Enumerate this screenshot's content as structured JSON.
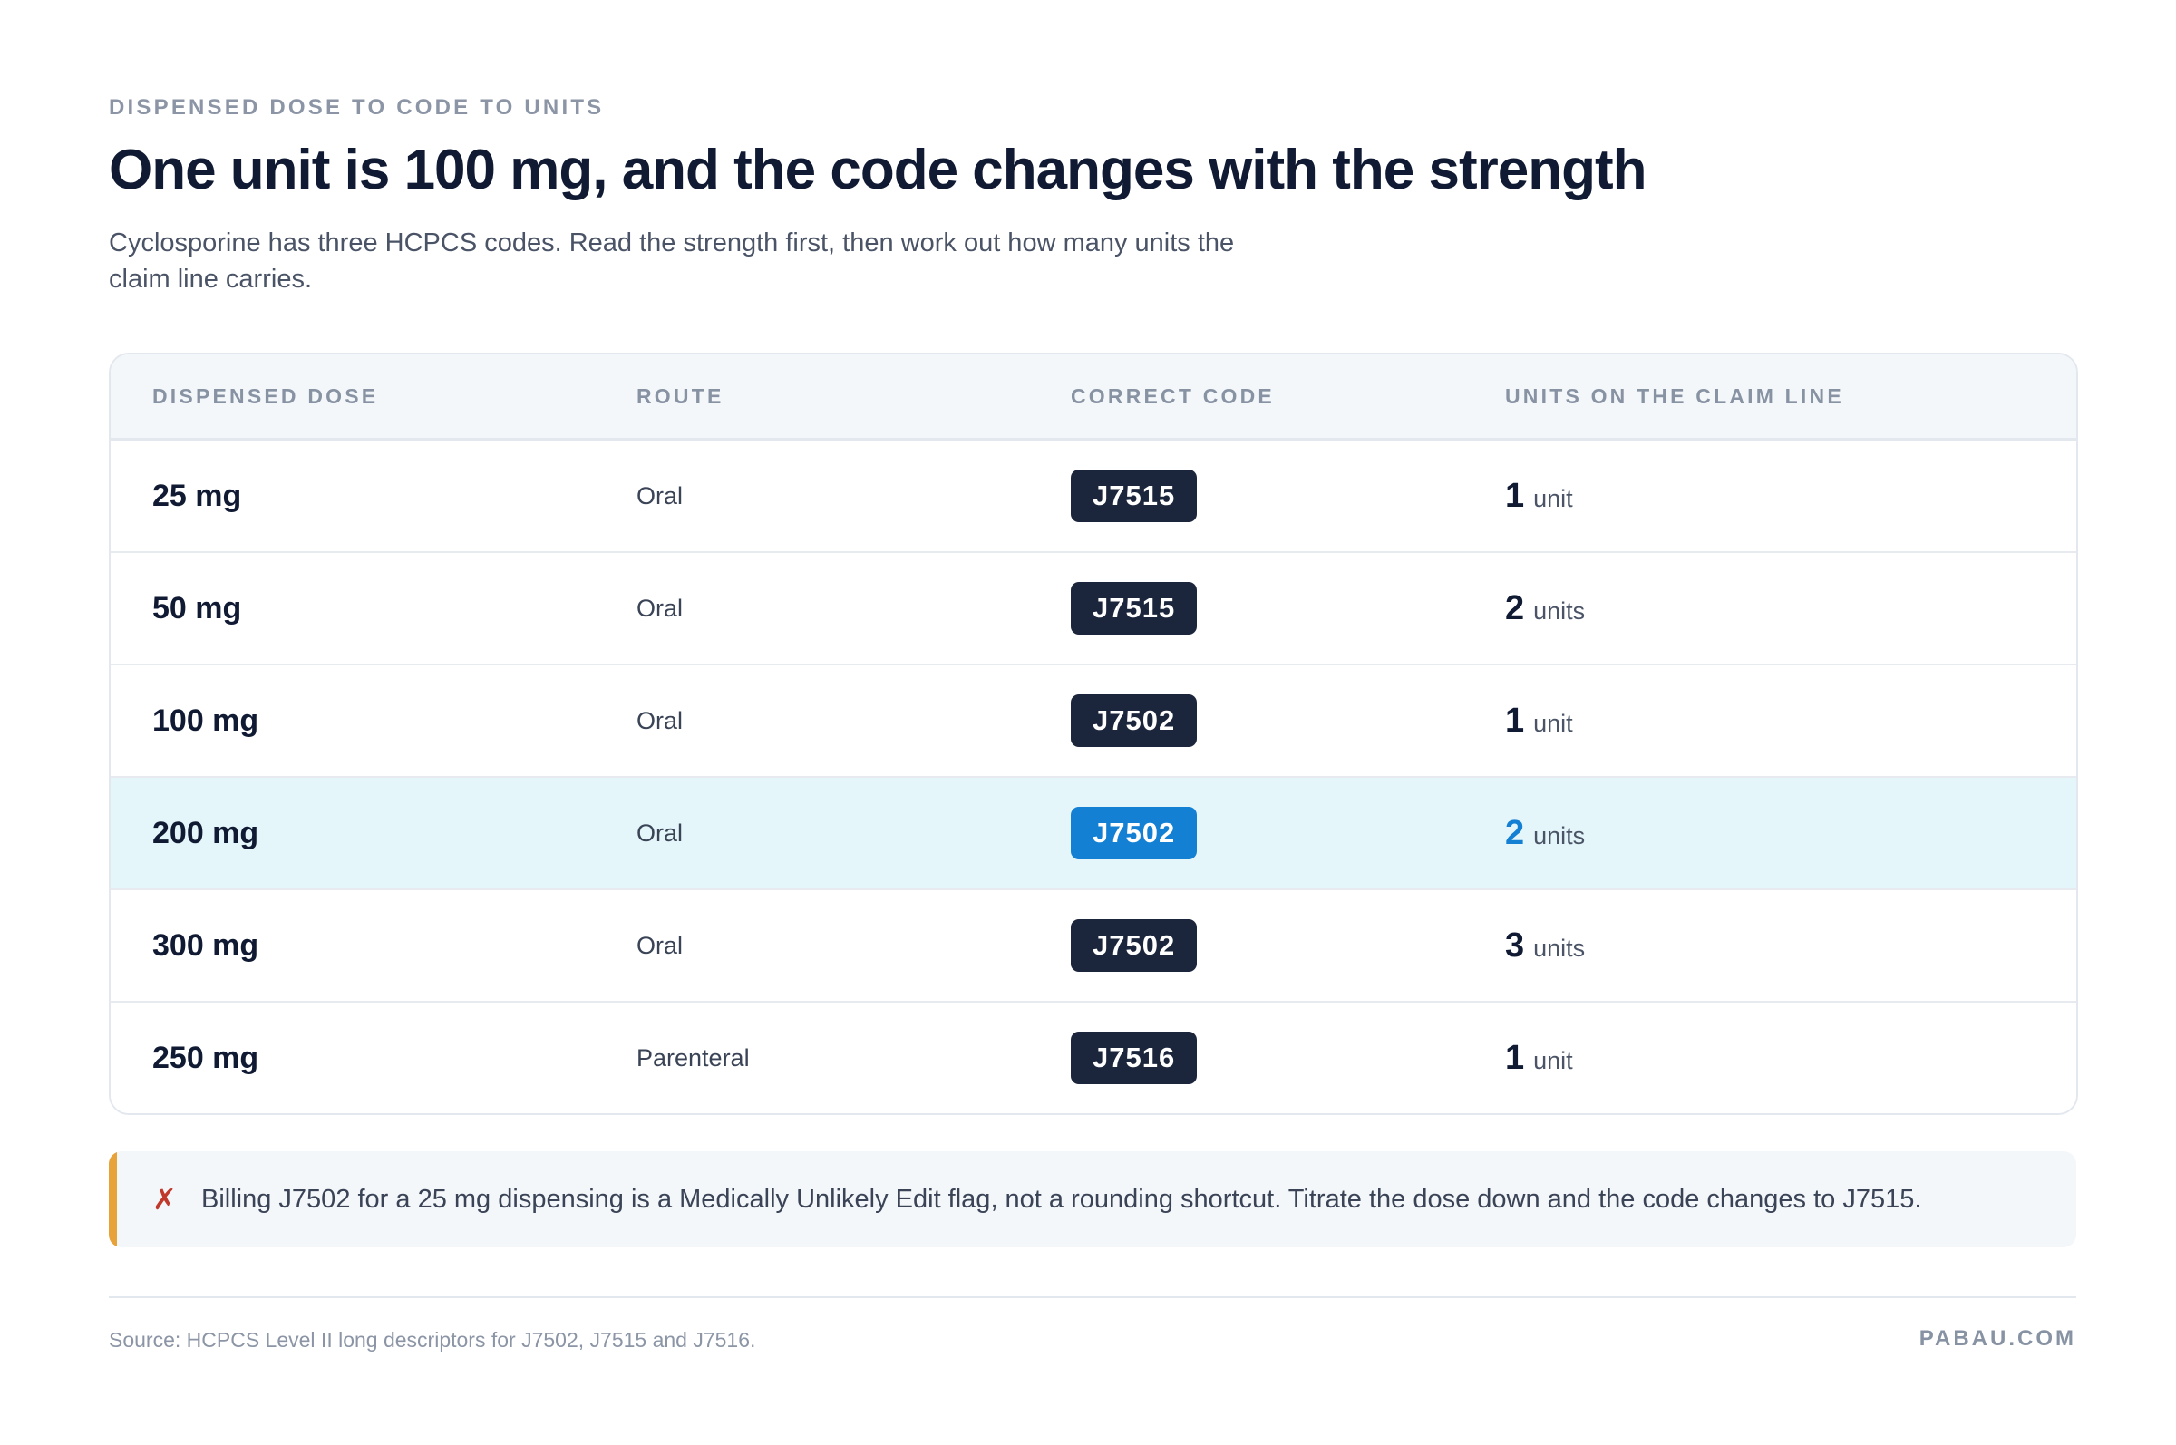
{
  "header": {
    "eyebrow": "DISPENSED DOSE TO CODE TO UNITS",
    "title": "One unit is 100 mg, and the code changes with the strength",
    "subtitle": "Cyclosporine has three HCPCS codes. Read the strength first, then work out how many units the claim line carries."
  },
  "table": {
    "columns": [
      "DISPENSED DOSE",
      "ROUTE",
      "CORRECT CODE",
      "UNITS ON THE CLAIM LINE"
    ],
    "rows": [
      {
        "dose": "25 mg",
        "route": "Oral",
        "code": "J7515",
        "units": "1",
        "unit_word": "unit",
        "highlighted": false
      },
      {
        "dose": "50 mg",
        "route": "Oral",
        "code": "J7515",
        "units": "2",
        "unit_word": "units",
        "highlighted": false
      },
      {
        "dose": "100 mg",
        "route": "Oral",
        "code": "J7502",
        "units": "1",
        "unit_word": "unit",
        "highlighted": false
      },
      {
        "dose": "200 mg",
        "route": "Oral",
        "code": "J7502",
        "units": "2",
        "unit_word": "units",
        "highlighted": true
      },
      {
        "dose": "300 mg",
        "route": "Oral",
        "code": "J7502",
        "units": "3",
        "unit_word": "units",
        "highlighted": false
      },
      {
        "dose": "250 mg",
        "route": "Parenteral",
        "code": "J7516",
        "units": "1",
        "unit_word": "unit",
        "highlighted": false
      }
    ]
  },
  "callout": {
    "icon": "cross-mark-icon",
    "icon_glyph": "✗",
    "text": "Billing J7502 for a 25 mg dispensing is a Medically Unlikely Edit flag, not a rounding shortcut. Titrate the dose down and the code changes to J7515."
  },
  "footer": {
    "source": "Source: HCPCS Level II long descriptors for J7502, J7515 and J7516.",
    "brand": "PABAU.COM"
  },
  "colors": {
    "accent": "#1380d3",
    "badge": "#1b253b",
    "highlight_row": "#e4f6fa",
    "callout_bar": "#e8a23a",
    "cross": "#c0392b"
  }
}
